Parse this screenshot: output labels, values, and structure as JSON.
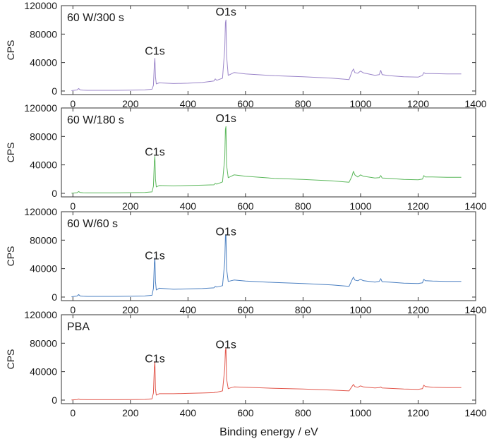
{
  "chart_data": {
    "type": "line",
    "xlabel": "Binding energy / eV",
    "xlim": [
      -40,
      1400
    ],
    "ylim": [
      -5000,
      120000
    ],
    "x_ticks": [
      0,
      200,
      400,
      600,
      800,
      1000,
      1200,
      1400
    ],
    "y_ticks": [
      0,
      40000,
      80000,
      120000
    ],
    "x_tick_labels": [
      "0",
      "200",
      "400",
      "600",
      "800",
      "1000",
      "1200",
      "1400"
    ],
    "y_tick_labels": [
      "0",
      "40000",
      "80000",
      "120000"
    ],
    "grid": false,
    "panels": [
      {
        "title": "60 W/300 s",
        "ylabel": "CPS",
        "color": "#9b85c9",
        "peak_labels": [
          {
            "text": "C1s",
            "x": 285,
            "y": 45000
          },
          {
            "text": "O1s",
            "x": 532,
            "y": 100000
          }
        ],
        "x": [
          -5,
          15,
          20,
          25,
          35,
          50,
          100,
          150,
          200,
          250,
          275,
          280,
          283,
          285,
          287,
          290,
          300,
          350,
          400,
          450,
          490,
          495,
          500,
          520,
          528,
          530,
          532,
          534,
          540,
          550,
          560,
          600,
          700,
          800,
          900,
          960,
          970,
          975,
          980,
          990,
          1000,
          1010,
          1050,
          1065,
          1070,
          1075,
          1100,
          1150,
          1200,
          1215,
          1220,
          1225,
          1250,
          1300,
          1350
        ],
        "y": [
          500,
          1500,
          3500,
          1500,
          1200,
          1000,
          1000,
          1000,
          1200,
          1500,
          2500,
          8000,
          38000,
          46000,
          20000,
          10000,
          11500,
          10500,
          11000,
          12000,
          14000,
          17000,
          15000,
          18000,
          60000,
          96000,
          100000,
          50000,
          22000,
          24000,
          26000,
          24000,
          21500,
          20000,
          18000,
          16000,
          27000,
          31000,
          26000,
          25000,
          28000,
          25500,
          22000,
          23000,
          29000,
          23000,
          21500,
          20000,
          19500,
          22000,
          26000,
          24500,
          24500,
          24000,
          24000
        ]
      },
      {
        "title": "60 W/180 s",
        "ylabel": "CPS",
        "color": "#5cb85c",
        "peak_labels": [
          {
            "text": "C1s",
            "x": 285,
            "y": 47000
          },
          {
            "text": "O1s",
            "x": 532,
            "y": 94000
          }
        ],
        "x": [
          -5,
          15,
          20,
          25,
          35,
          50,
          100,
          150,
          200,
          250,
          275,
          280,
          283,
          285,
          287,
          290,
          300,
          350,
          400,
          450,
          490,
          495,
          500,
          520,
          528,
          530,
          532,
          534,
          540,
          550,
          560,
          600,
          700,
          800,
          900,
          960,
          970,
          975,
          980,
          990,
          1000,
          1010,
          1050,
          1065,
          1070,
          1075,
          1100,
          1150,
          1200,
          1215,
          1220,
          1225,
          1250,
          1300,
          1350
        ],
        "y": [
          300,
          1000,
          2500,
          1200,
          900,
          800,
          800,
          800,
          1000,
          1200,
          2000,
          10000,
          45000,
          52000,
          20000,
          9000,
          11000,
          10500,
          11000,
          11500,
          12000,
          14000,
          13000,
          16000,
          50000,
          90000,
          94000,
          40000,
          22000,
          24000,
          26000,
          24000,
          21000,
          19500,
          17500,
          15500,
          24000,
          31000,
          26000,
          23000,
          26000,
          24000,
          21500,
          22000,
          25000,
          21500,
          21000,
          19500,
          19000,
          20000,
          25000,
          23000,
          23000,
          22500,
          22500
        ]
      },
      {
        "title": "60 W/60 s",
        "ylabel": "CPS",
        "color": "#4a7fc1",
        "peak_labels": [
          {
            "text": "C1s",
            "x": 285,
            "y": 47000
          },
          {
            "text": "O1s",
            "x": 532,
            "y": 81000
          }
        ],
        "x": [
          -5,
          15,
          20,
          25,
          35,
          50,
          100,
          150,
          200,
          250,
          275,
          280,
          283,
          285,
          287,
          290,
          300,
          350,
          400,
          450,
          490,
          495,
          500,
          520,
          528,
          530,
          532,
          534,
          540,
          550,
          560,
          600,
          700,
          800,
          900,
          960,
          970,
          975,
          980,
          990,
          1000,
          1010,
          1050,
          1065,
          1070,
          1075,
          1100,
          1150,
          1200,
          1215,
          1220,
          1225,
          1250,
          1300,
          1350
        ],
        "y": [
          400,
          1500,
          3500,
          1500,
          1200,
          1000,
          1000,
          1000,
          1200,
          1500,
          2500,
          12000,
          48000,
          55000,
          22000,
          10000,
          12500,
          11000,
          11500,
          12000,
          13000,
          15000,
          14000,
          16000,
          50000,
          85000,
          88000,
          40000,
          22000,
          23000,
          24000,
          22500,
          20500,
          19000,
          17000,
          15000,
          24000,
          28000,
          24000,
          23000,
          25000,
          23000,
          21000,
          22000,
          26000,
          21500,
          21000,
          19500,
          19000,
          20000,
          25000,
          23000,
          22500,
          22000,
          22000
        ]
      },
      {
        "title": "PBA",
        "ylabel": "CPS",
        "color": "#e2574c",
        "peak_labels": [
          {
            "text": "C1s",
            "x": 285,
            "y": 47000
          },
          {
            "text": "O1s",
            "x": 532,
            "y": 67000
          }
        ],
        "x": [
          -5,
          15,
          20,
          25,
          35,
          50,
          100,
          150,
          200,
          250,
          275,
          280,
          283,
          285,
          287,
          290,
          300,
          350,
          400,
          450,
          490,
          495,
          500,
          520,
          528,
          530,
          532,
          534,
          540,
          550,
          560,
          600,
          700,
          800,
          900,
          960,
          970,
          975,
          980,
          990,
          1000,
          1010,
          1050,
          1065,
          1070,
          1075,
          1100,
          1150,
          1200,
          1215,
          1220,
          1225,
          1250,
          1300,
          1350
        ],
        "y": [
          300,
          800,
          1500,
          800,
          700,
          600,
          600,
          600,
          800,
          1000,
          1800,
          10000,
          46000,
          54000,
          16000,
          7000,
          9000,
          9000,
          9500,
          10000,
          10500,
          11000,
          11000,
          13000,
          45000,
          70000,
          73000,
          30000,
          16000,
          17500,
          18500,
          18000,
          16500,
          15500,
          14000,
          13000,
          19000,
          22000,
          19000,
          18000,
          20000,
          18500,
          17000,
          17500,
          18500,
          17000,
          16500,
          15500,
          15000,
          16000,
          21000,
          19000,
          18000,
          17500,
          17500
        ]
      }
    ]
  }
}
